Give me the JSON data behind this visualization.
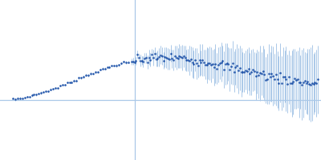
{
  "title": "",
  "background_color": "#ffffff",
  "dot_color": "#2255aa",
  "error_color": "#aac8e8",
  "grid_color": "#aac8e8",
  "figsize": [
    4.0,
    2.0
  ],
  "dpi": 100,
  "xlim": [
    0.0,
    1.0
  ],
  "ylim": [
    -0.6,
    1.0
  ],
  "hline_y": 0.0,
  "vline_x": 0.42
}
